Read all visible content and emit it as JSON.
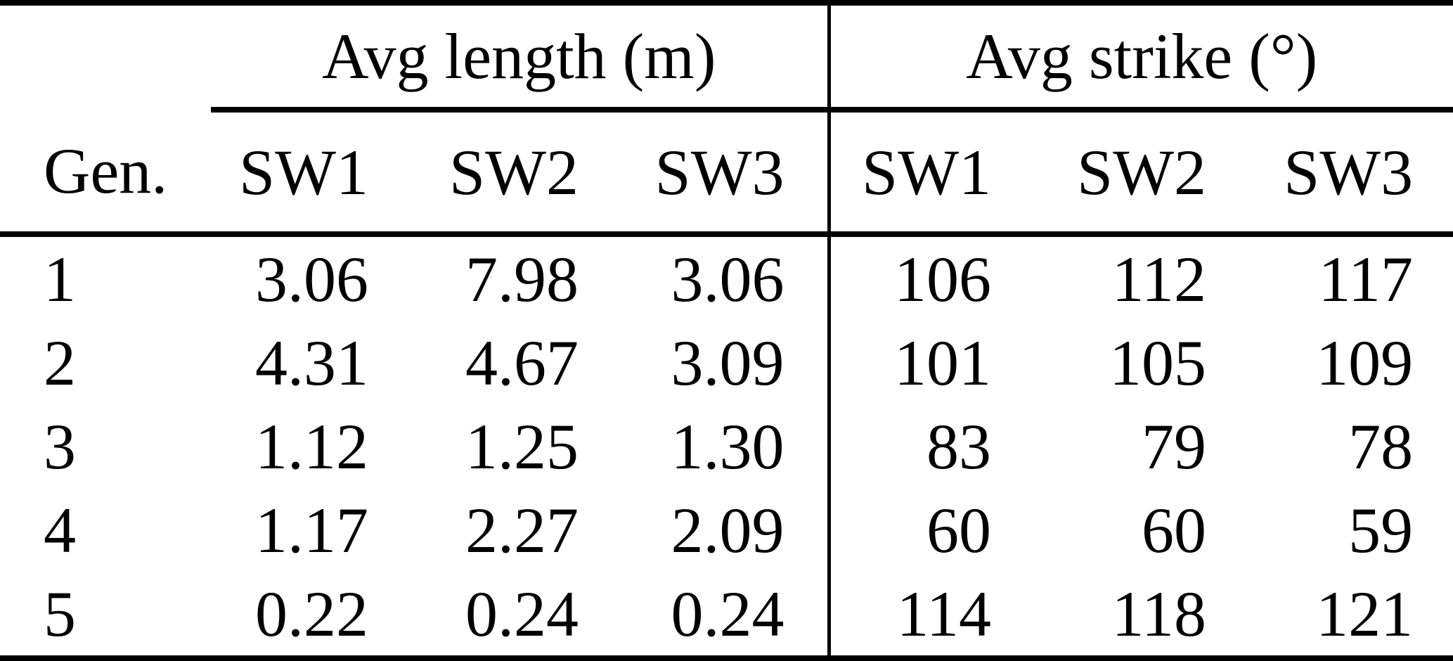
{
  "table": {
    "group_headers": {
      "length": "Avg length (m)",
      "strike": "Avg strike (°)"
    },
    "columns": {
      "gen": "Gen.",
      "len_sw1": "SW1",
      "len_sw2": "SW2",
      "len_sw3": "SW3",
      "str_sw1": "SW1",
      "str_sw2": "SW2",
      "str_sw3": "SW3"
    },
    "rows": [
      {
        "gen": "1",
        "len_sw1": "3.06",
        "len_sw2": "7.98",
        "len_sw3": "3.06",
        "str_sw1": "106",
        "str_sw2": "112",
        "str_sw3": "117"
      },
      {
        "gen": "2",
        "len_sw1": "4.31",
        "len_sw2": "4.67",
        "len_sw3": "3.09",
        "str_sw1": "101",
        "str_sw2": "105",
        "str_sw3": "109"
      },
      {
        "gen": "3",
        "len_sw1": "1.12",
        "len_sw2": "1.25",
        "len_sw3": "1.30",
        "str_sw1": "83",
        "str_sw2": "79",
        "str_sw3": "78"
      },
      {
        "gen": "4",
        "len_sw1": "1.17",
        "len_sw2": "2.27",
        "len_sw3": "2.09",
        "str_sw1": "60",
        "str_sw2": "60",
        "str_sw3": "59"
      },
      {
        "gen": "5",
        "len_sw1": "0.22",
        "len_sw2": "0.24",
        "len_sw3": "0.24",
        "str_sw1": "114",
        "str_sw2": "118",
        "str_sw3": "121"
      }
    ]
  },
  "chart_data": {
    "type": "table",
    "group_headers": [
      "Avg length (m)",
      "Avg strike (°)"
    ],
    "columns": [
      "Gen.",
      "SW1",
      "SW2",
      "SW3",
      "SW1",
      "SW2",
      "SW3"
    ],
    "rows": [
      [
        "1",
        "3.06",
        "7.98",
        "3.06",
        "106",
        "112",
        "117"
      ],
      [
        "2",
        "4.31",
        "4.67",
        "3.09",
        "101",
        "105",
        "109"
      ],
      [
        "3",
        "1.12",
        "1.25",
        "1.30",
        "83",
        "79",
        "78"
      ],
      [
        "4",
        "1.17",
        "2.27",
        "2.09",
        "60",
        "60",
        "59"
      ],
      [
        "5",
        "0.22",
        "0.24",
        "0.24",
        "114",
        "118",
        "121"
      ]
    ]
  },
  "colors": {
    "text": "#000000",
    "rule": "#000000",
    "background": "#ffffff"
  }
}
